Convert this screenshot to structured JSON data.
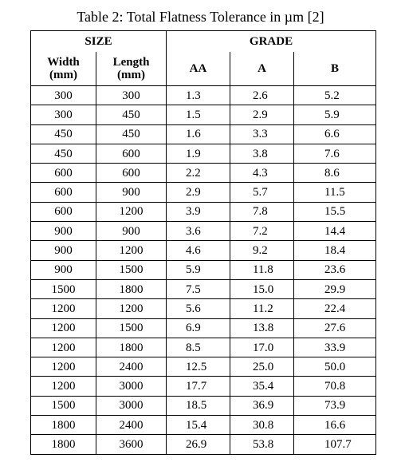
{
  "caption": "Table 2: Total Flatness Tolerance in µm [2]",
  "table": {
    "group_headers": {
      "size": "SIZE",
      "grade": "GRADE"
    },
    "col_headers": {
      "width": "Width\n(mm)",
      "length": "Length\n(mm)",
      "aa": "AA",
      "a": "A",
      "b": "B"
    },
    "rows": [
      [
        "300",
        "300",
        "1.3",
        "2.6",
        "5.2"
      ],
      [
        "300",
        "450",
        "1.5",
        "2.9",
        "5.9"
      ],
      [
        "450",
        "450",
        "1.6",
        "3.3",
        "6.6"
      ],
      [
        "450",
        "600",
        "1.9",
        "3.8",
        "7.6"
      ],
      [
        "600",
        "600",
        "2.2",
        "4.3",
        "8.6"
      ],
      [
        "600",
        "900",
        "2.9",
        "5.7",
        "11.5"
      ],
      [
        "600",
        "1200",
        "3.9",
        "7.8",
        "15.5"
      ],
      [
        "900",
        "900",
        "3.6",
        "7.2",
        "14.4"
      ],
      [
        "900",
        "1200",
        "4.6",
        "9.2",
        "18.4"
      ],
      [
        "900",
        "1500",
        "5.9",
        "11.8",
        "23.6"
      ],
      [
        "1500",
        "1800",
        "7.5",
        "15.0",
        "29.9"
      ],
      [
        "1200",
        "1200",
        "5.6",
        "11.2",
        "22.4"
      ],
      [
        "1200",
        "1500",
        "6.9",
        "13.8",
        "27.6"
      ],
      [
        "1200",
        "1800",
        "8.5",
        "17.0",
        "33.9"
      ],
      [
        "1200",
        "2400",
        "12.5",
        "25.0",
        "50.0"
      ],
      [
        "1200",
        "3000",
        "17.7",
        "35.4",
        "70.8"
      ],
      [
        "1500",
        "3000",
        "18.5",
        "36.9",
        "73.9"
      ],
      [
        "1800",
        "2400",
        "15.4",
        "30.8",
        "16.6"
      ],
      [
        "1800",
        "3600",
        "26.9",
        "53.8",
        "107.7"
      ]
    ]
  }
}
